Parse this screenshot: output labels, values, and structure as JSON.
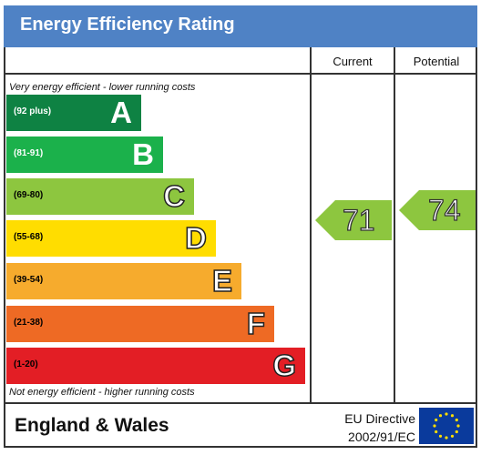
{
  "header": {
    "title": "Energy Efficiency Rating"
  },
  "columns": {
    "current": "Current",
    "potential": "Potential"
  },
  "notes": {
    "top": "Very energy efficient - lower running costs",
    "bottom": "Not energy efficient - higher running costs"
  },
  "footer": {
    "region": "England & Wales",
    "directive_line1": "EU Directive",
    "directive_line2": "2002/91/EC"
  },
  "colors": {
    "header": "#4f82c5",
    "A": "#0e8243",
    "B": "#1bb14b",
    "C": "#8dc63f",
    "D": "#ffdd00",
    "E": "#f6ab2d",
    "F": "#ee6a24",
    "G": "#e31e25",
    "arrow": "#8dc63f"
  },
  "chart_data": {
    "type": "bar",
    "bands": [
      {
        "range": "(92 plus)",
        "letter": "A"
      },
      {
        "range": "(81-91)",
        "letter": "B"
      },
      {
        "range": "(69-80)",
        "letter": "C"
      },
      {
        "range": "(55-68)",
        "letter": "D"
      },
      {
        "range": "(39-54)",
        "letter": "E"
      },
      {
        "range": "(21-38)",
        "letter": "F"
      },
      {
        "range": "(1-20)",
        "letter": "G"
      }
    ],
    "current": 71,
    "potential": 74
  }
}
